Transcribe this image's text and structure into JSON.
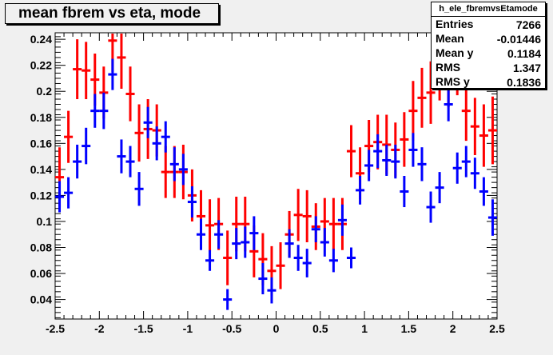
{
  "title": "mean fbrem vs eta, mode",
  "stats_box": {
    "name": "h_ele_fbremvsEtamode",
    "rows": [
      {
        "label": "Entries",
        "value": "7266"
      },
      {
        "label": "Mean",
        "value": "-0.01446"
      },
      {
        "label": "Mean y",
        "value": "0.1184"
      },
      {
        "label": "RMS",
        "value": "1.347"
      },
      {
        "label": "RMS y",
        "value": "0.1836"
      }
    ]
  },
  "colors": {
    "background": "#f0f0f0",
    "plot_bg": "#ffffff",
    "series_red": "#ff0000",
    "series_blue": "#0000ff"
  },
  "chart_data": {
    "type": "scatter",
    "title": "mean fbrem vs eta, mode",
    "xlabel": "",
    "ylabel": "",
    "xlim": [
      -2.5,
      2.5
    ],
    "ylim": [
      0.025,
      0.245
    ],
    "x_ticks": [
      "-2.5",
      "-2",
      "-1.5",
      "-1",
      "-0.5",
      "0",
      "0.5",
      "1",
      "1.5",
      "2",
      "2.5"
    ],
    "y_ticks": [
      "0.04",
      "0.06",
      "0.08",
      "0.1",
      "0.12",
      "0.14",
      "0.16",
      "0.18",
      "0.2",
      "0.22",
      "0.24"
    ],
    "grid": false,
    "bin_width": 0.1,
    "series": [
      {
        "color": "#ff0000",
        "x": [
          -2.45,
          -2.35,
          -2.25,
          -2.15,
          -2.05,
          -1.95,
          -1.85,
          -1.75,
          -1.65,
          -1.55,
          -1.45,
          -1.35,
          -1.25,
          -1.15,
          -1.05,
          -0.95,
          -0.85,
          -0.75,
          -0.65,
          -0.55,
          -0.45,
          -0.35,
          -0.25,
          -0.15,
          -0.05,
          0.05,
          0.15,
          0.25,
          0.35,
          0.45,
          0.55,
          0.65,
          0.75,
          0.85,
          0.95,
          1.05,
          1.15,
          1.25,
          1.35,
          1.45,
          1.55,
          1.65,
          1.75,
          1.85,
          1.95,
          2.05,
          2.15,
          2.25,
          2.35,
          2.45
        ],
        "y": [
          0.134,
          0.165,
          0.217,
          0.216,
          0.209,
          0.199,
          0.239,
          0.226,
          0.198,
          0.168,
          0.171,
          0.17,
          0.138,
          0.138,
          0.138,
          0.12,
          0.104,
          0.097,
          0.098,
          0.072,
          0.098,
          0.098,
          0.077,
          0.071,
          0.062,
          0.066,
          0.09,
          0.105,
          0.104,
          0.096,
          0.1,
          0.098,
          0.098,
          0.154,
          0.137,
          0.158,
          0.161,
          0.159,
          0.155,
          0.163,
          0.185,
          0.195,
          0.199,
          0.217,
          0.21,
          0.217,
          0.185,
          0.173,
          0.166,
          0.17
        ],
        "err": [
          0.023,
          0.02,
          0.023,
          0.022,
          0.02,
          0.02,
          0.024,
          0.024,
          0.021,
          0.022,
          0.023,
          0.02,
          0.02,
          0.02,
          0.021,
          0.02,
          0.02,
          0.02,
          0.02,
          0.021,
          0.021,
          0.021,
          0.02,
          0.02,
          0.019,
          0.018,
          0.018,
          0.02,
          0.02,
          0.018,
          0.018,
          0.02,
          0.02,
          0.02,
          0.02,
          0.02,
          0.021,
          0.023,
          0.021,
          0.021,
          0.023,
          0.023,
          0.024,
          0.024,
          0.022,
          0.02,
          0.023,
          0.022,
          0.024,
          0.026
        ]
      },
      {
        "color": "#0000ff",
        "x": [
          -2.45,
          -2.35,
          -2.25,
          -2.15,
          -2.05,
          -1.95,
          -1.85,
          -1.75,
          -1.65,
          -1.55,
          -1.45,
          -1.35,
          -1.25,
          -1.15,
          -1.05,
          -0.95,
          -0.85,
          -0.75,
          -0.65,
          -0.55,
          -0.45,
          -0.35,
          -0.25,
          -0.15,
          -0.05,
          0.05,
          0.15,
          0.25,
          0.35,
          0.45,
          0.55,
          0.65,
          0.75,
          0.85,
          0.95,
          1.05,
          1.15,
          1.25,
          1.35,
          1.45,
          1.55,
          1.65,
          1.75,
          1.85,
          1.95,
          2.05,
          2.15,
          2.25,
          2.35,
          2.45
        ],
        "y": [
          0.119,
          0.122,
          0.146,
          0.158,
          0.185,
          0.185,
          0.213,
          0.15,
          0.146,
          0.125,
          0.176,
          0.16,
          0.165,
          0.144,
          0.14,
          0.115,
          0.09,
          0.07,
          0.09,
          0.04,
          0.083,
          0.084,
          0.091,
          0.056,
          0.047,
          null,
          0.083,
          0.072,
          0.068,
          0.094,
          0.084,
          0.07,
          0.101,
          0.072,
          0.124,
          0.143,
          0.154,
          0.147,
          0.146,
          0.123,
          0.155,
          0.144,
          0.111,
          0.126,
          0.19,
          0.141,
          0.146,
          0.137,
          0.123,
          0.103
        ],
        "err": [
          0.012,
          0.012,
          0.013,
          0.014,
          0.013,
          0.014,
          0.012,
          0.013,
          0.012,
          0.013,
          0.012,
          0.013,
          0.012,
          0.013,
          0.012,
          0.012,
          0.012,
          0.008,
          0.011,
          0.008,
          0.012,
          0.012,
          0.013,
          0.012,
          0.01,
          0,
          0.011,
          0.01,
          0.011,
          0.01,
          0.011,
          0.009,
          0.012,
          0.008,
          0.011,
          0.012,
          0.013,
          0.012,
          0.013,
          0.012,
          0.013,
          0.013,
          0.012,
          0.012,
          0.013,
          0.012,
          0.012,
          0.012,
          0.011,
          0.014
        ]
      }
    ]
  }
}
